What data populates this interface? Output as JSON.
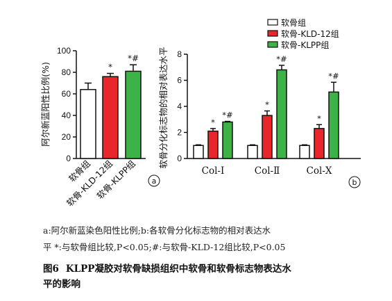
{
  "chart_data": [
    {
      "panel": "a",
      "type": "bar",
      "ylabel": "阿尔新蓝阳性比例(%)",
      "ylim": [
        0,
        100
      ],
      "yticks": [
        0,
        20,
        40,
        60,
        80,
        100
      ],
      "categories": [
        "软骨组",
        "软骨-KLD-12组",
        "软骨-KLPP组"
      ],
      "values": [
        64,
        76,
        81
      ],
      "errors": [
        6,
        3,
        6
      ],
      "annotations": [
        "",
        "*",
        "*#"
      ],
      "colors": [
        "#ffffff",
        "#e8262b",
        "#3db347"
      ]
    },
    {
      "panel": "b",
      "type": "bar",
      "ylabel": "软骨分化标志物的相对表达水平",
      "ylim": [
        0,
        8
      ],
      "yticks": [
        0,
        2,
        4,
        6,
        8
      ],
      "categories": [
        "Col-Ⅰ",
        "Col-Ⅱ",
        "Col-Ⅹ"
      ],
      "legend_position": "top",
      "series": [
        {
          "name": "软骨组",
          "color": "#ffffff",
          "values": [
            1.0,
            1.0,
            1.0
          ],
          "errors": [
            0.05,
            0.05,
            0.05
          ],
          "annotations": [
            "",
            "",
            ""
          ]
        },
        {
          "name": "软骨-KLD-12组",
          "color": "#e8262b",
          "values": [
            2.1,
            3.3,
            2.3
          ],
          "errors": [
            0.2,
            0.35,
            0.3
          ],
          "annotations": [
            "*",
            "*",
            "*"
          ]
        },
        {
          "name": "软骨-KLPP组",
          "color": "#3db347",
          "values": [
            2.8,
            6.8,
            5.1
          ],
          "errors": [
            0.05,
            0.35,
            0.75
          ],
          "annotations": [
            "*#",
            "*#",
            "*#"
          ]
        }
      ]
    }
  ],
  "caption": {
    "note_line1": "a:阿尔新蓝染色阳性比例;b:各软骨分化标志物的相对表达水",
    "note_line2": "平  *:与软骨组比较,P<0.05;#:与软骨-KLD-12组比较,P<0.05",
    "figure_number": "图6",
    "title_line1": "KLPP凝胶对软骨缺损组织中软骨和软骨标志物表达水",
    "title_line2": "平的影响"
  }
}
